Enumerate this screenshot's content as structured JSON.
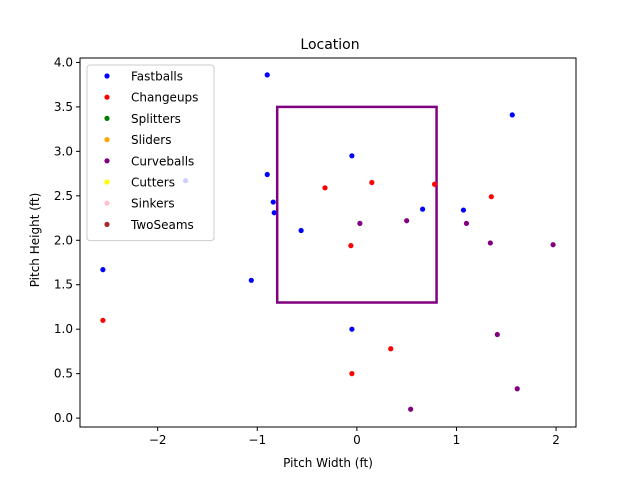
{
  "chart_data": {
    "type": "scatter",
    "title": "Location",
    "xlabel": "Pitch Width (ft)",
    "ylabel": "Pitch Height (ft)",
    "xlim": [
      -2.78,
      2.2
    ],
    "ylim": [
      -0.1,
      4.05
    ],
    "xticks": [
      -2,
      -1,
      0,
      1,
      2
    ],
    "xtick_labels": [
      "−2",
      "−1",
      "0",
      "1",
      "2"
    ],
    "yticks": [
      0.0,
      0.5,
      1.0,
      1.5,
      2.0,
      2.5,
      3.0,
      3.5,
      4.0
    ],
    "ytick_labels": [
      "0.0",
      "0.5",
      "1.0",
      "1.5",
      "2.0",
      "2.5",
      "3.0",
      "3.5",
      "4.0"
    ],
    "grid": false,
    "legend_position": "upper-left",
    "strike_zone": {
      "x": [
        -0.8,
        0.8
      ],
      "y": [
        1.3,
        3.5
      ],
      "color": "#800080"
    },
    "series": [
      {
        "name": "Fastballs",
        "color": "#0000ff",
        "points": [
          [
            -0.9,
            3.86
          ],
          [
            1.56,
            3.41
          ],
          [
            -0.05,
            2.95
          ],
          [
            -0.9,
            2.74
          ],
          [
            -1.72,
            2.67
          ],
          [
            -0.84,
            2.43
          ],
          [
            -0.83,
            2.31
          ],
          [
            0.66,
            2.35
          ],
          [
            1.07,
            2.34
          ],
          [
            -0.56,
            2.11
          ],
          [
            -2.55,
            1.67
          ],
          [
            -1.06,
            1.55
          ],
          [
            -0.05,
            1.0
          ]
        ]
      },
      {
        "name": "Changeups",
        "color": "#ff0000",
        "points": [
          [
            -2.55,
            1.1
          ],
          [
            -0.32,
            2.59
          ],
          [
            0.15,
            2.65
          ],
          [
            0.78,
            2.63
          ],
          [
            1.35,
            2.49
          ],
          [
            -0.06,
            1.94
          ],
          [
            0.34,
            0.78
          ],
          [
            -0.05,
            0.5
          ]
        ]
      },
      {
        "name": "Splitters",
        "color": "#008000",
        "points": []
      },
      {
        "name": "Sliders",
        "color": "#ffa500",
        "points": []
      },
      {
        "name": "Curveballs",
        "color": "#800080",
        "points": [
          [
            0.03,
            2.19
          ],
          [
            0.5,
            2.22
          ],
          [
            1.1,
            2.19
          ],
          [
            1.34,
            1.97
          ],
          [
            1.97,
            1.95
          ],
          [
            1.41,
            0.94
          ],
          [
            1.61,
            0.33
          ],
          [
            0.54,
            0.1
          ]
        ]
      },
      {
        "name": "Cutters",
        "color": "#ffff00",
        "points": []
      },
      {
        "name": "Sinkers",
        "color": "#ffc0cb",
        "points": []
      },
      {
        "name": "TwoSeams",
        "color": "#a52a2a",
        "points": []
      }
    ]
  }
}
